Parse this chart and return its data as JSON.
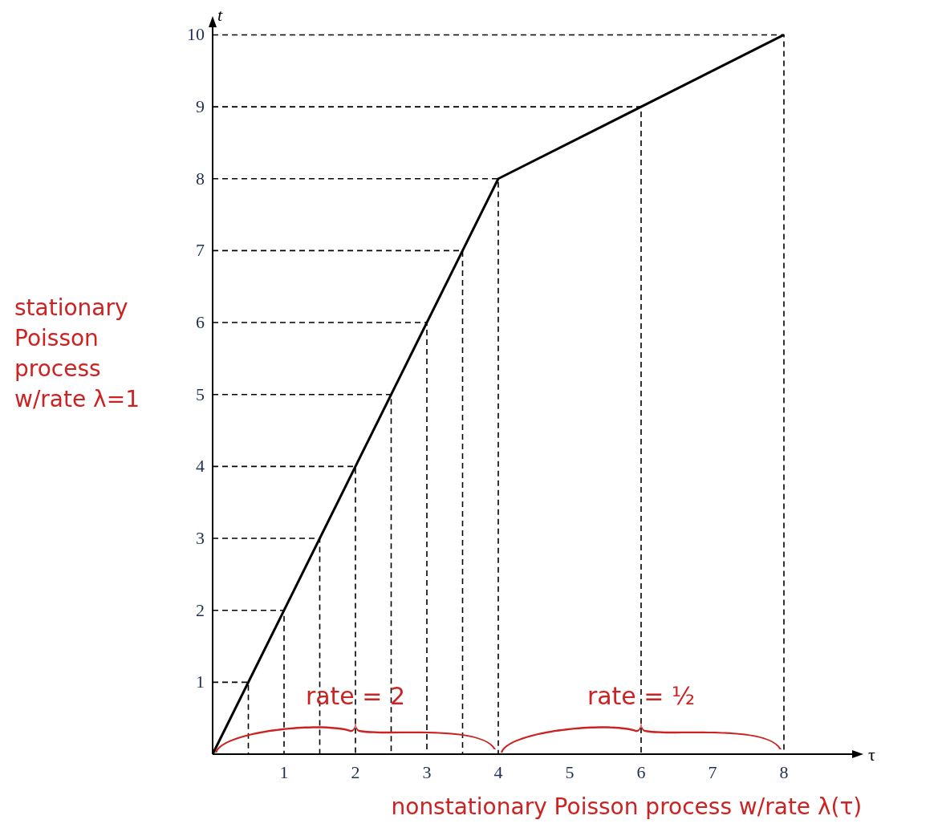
{
  "chart_data": {
    "type": "line",
    "xlabel": "τ",
    "ylabel": "t",
    "x": [
      0,
      4,
      8
    ],
    "series": [
      {
        "color": "#000000",
        "values": [
          0,
          8,
          10
        ]
      },
      {
        "color": "#000000",
        "line_style": "dashed",
        "x": [
          0,
          0.5,
          0.5
        ],
        "values": [
          1,
          1,
          0
        ]
      },
      {
        "color": "#000000",
        "line_style": "dashed",
        "x": [
          0,
          1,
          1
        ],
        "values": [
          2,
          2,
          0
        ]
      },
      {
        "color": "#000000",
        "line_style": "dashed",
        "x": [
          0,
          1.5,
          1.5
        ],
        "values": [
          3,
          3,
          0
        ]
      },
      {
        "color": "#000000",
        "line_style": "dashed",
        "x": [
          0,
          2,
          2
        ],
        "values": [
          4,
          4,
          0
        ]
      },
      {
        "color": "#000000",
        "line_style": "dashed",
        "x": [
          0,
          2.5,
          2.5
        ],
        "values": [
          5,
          5,
          0
        ]
      },
      {
        "color": "#000000",
        "line_style": "dashed",
        "x": [
          0,
          3,
          3
        ],
        "values": [
          6,
          6,
          0
        ]
      },
      {
        "color": "#000000",
        "line_style": "dashed",
        "x": [
          0,
          3.5,
          3.5
        ],
        "values": [
          7,
          7,
          0
        ]
      },
      {
        "color": "#000000",
        "line_style": "dashed",
        "x": [
          0,
          4,
          4
        ],
        "values": [
          8,
          8,
          0
        ]
      },
      {
        "color": "#000000",
        "line_style": "dashed",
        "x": [
          0,
          6,
          6
        ],
        "values": [
          9,
          9,
          0
        ]
      },
      {
        "color": "#000000",
        "line_style": "dashed",
        "x": [
          0,
          8,
          8
        ],
        "values": [
          10,
          10,
          0
        ]
      }
    ],
    "xlim": [
      0,
      9
    ],
    "ylim": [
      0,
      10.15
    ],
    "xticks": [
      1,
      2,
      3,
      4,
      5,
      6,
      7,
      8
    ],
    "yticks": [
      1,
      2,
      3,
      4,
      5,
      6,
      7,
      8,
      9,
      10
    ],
    "grid": false,
    "marker": "none",
    "line_style": "solid",
    "annotations": [
      "stationary\nPoisson\nprocess\nw/rate λ=1",
      "nonstationary Poisson process w/rate λ(τ)",
      "rate = 2",
      "rate = ½"
    ]
  }
}
